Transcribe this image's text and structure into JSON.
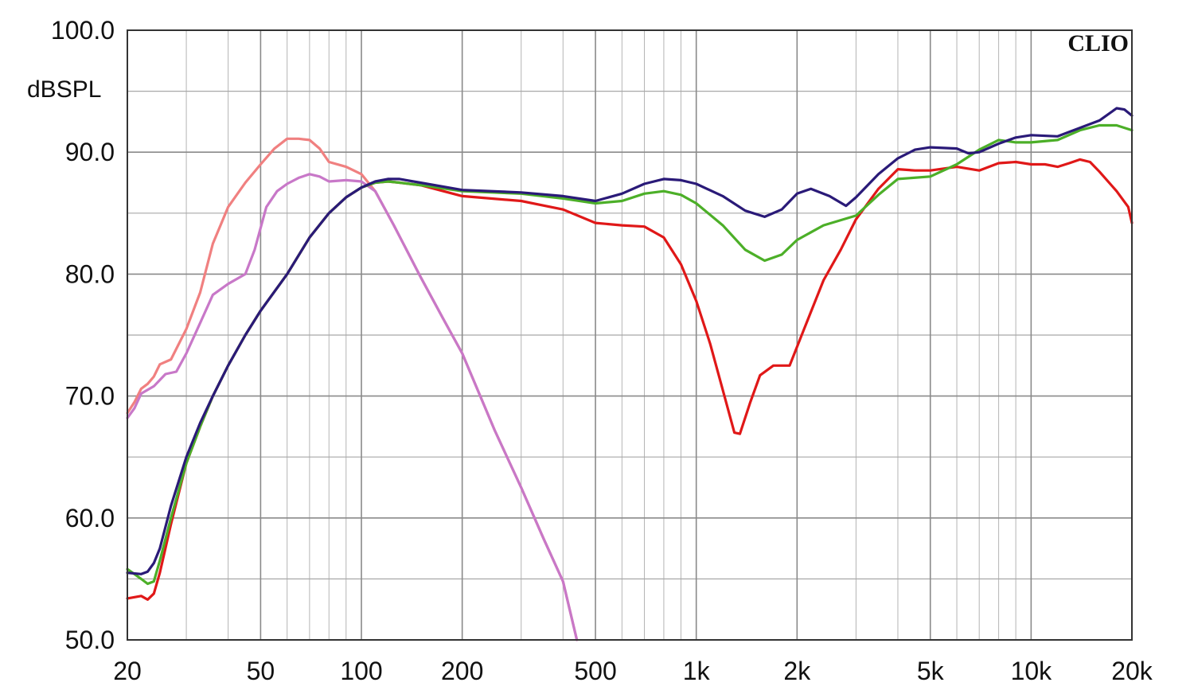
{
  "chart_data": {
    "type": "line",
    "title": "",
    "brand": "CLIO",
    "xlabel": "",
    "ylabel": "dBSPL",
    "x_scale": "log",
    "xlim": [
      20,
      20000
    ],
    "ylim": [
      50,
      100
    ],
    "grid": true,
    "legend": "none",
    "x_ticks": [
      {
        "value": 20,
        "label": "20"
      },
      {
        "value": 50,
        "label": "50"
      },
      {
        "value": 100,
        "label": "100"
      },
      {
        "value": 200,
        "label": "200"
      },
      {
        "value": 500,
        "label": "500"
      },
      {
        "value": 1000,
        "label": "1k"
      },
      {
        "value": 2000,
        "label": "2k"
      },
      {
        "value": 5000,
        "label": "5k"
      },
      {
        "value": 10000,
        "label": "10k"
      },
      {
        "value": 20000,
        "label": "20k"
      }
    ],
    "y_ticks": [
      {
        "value": 100,
        "label": "100.0"
      },
      {
        "value": 90,
        "label": "90.0"
      },
      {
        "value": 80,
        "label": "80.0"
      },
      {
        "value": 70,
        "label": "70.0"
      },
      {
        "value": 60,
        "label": "60.0"
      },
      {
        "value": 50,
        "label": "50.0"
      }
    ],
    "series": [
      {
        "color": "#f08080",
        "points": [
          [
            20,
            68.6
          ],
          [
            21,
            69.5
          ],
          [
            22,
            70.6
          ],
          [
            23,
            71.0
          ],
          [
            24,
            71.6
          ],
          [
            25,
            72.6
          ],
          [
            27,
            73.0
          ],
          [
            30,
            75.5
          ],
          [
            33,
            78.5
          ],
          [
            36,
            82.5
          ],
          [
            40,
            85.5
          ],
          [
            45,
            87.5
          ],
          [
            50,
            89.0
          ],
          [
            55,
            90.3
          ],
          [
            60,
            91.1
          ],
          [
            65,
            91.1
          ],
          [
            70,
            91.0
          ],
          [
            75,
            90.3
          ],
          [
            80,
            89.2
          ],
          [
            90,
            88.8
          ],
          [
            100,
            88.2
          ],
          [
            110,
            86.8
          ],
          [
            125,
            84.0
          ],
          [
            150,
            79.8
          ],
          [
            175,
            76.4
          ],
          [
            200,
            73.5
          ],
          [
            250,
            67.2
          ],
          [
            300,
            62.5
          ],
          [
            350,
            58.3
          ],
          [
            400,
            54.8
          ],
          [
            440,
            50.0
          ]
        ]
      },
      {
        "color": "#c878c8",
        "points": [
          [
            20,
            68.2
          ],
          [
            21,
            69.0
          ],
          [
            22,
            70.2
          ],
          [
            24,
            70.8
          ],
          [
            26,
            71.8
          ],
          [
            28,
            72.0
          ],
          [
            30,
            73.5
          ],
          [
            33,
            76.0
          ],
          [
            36,
            78.3
          ],
          [
            40,
            79.2
          ],
          [
            45,
            80.0
          ],
          [
            48,
            82.0
          ],
          [
            52,
            85.5
          ],
          [
            56,
            86.8
          ],
          [
            60,
            87.4
          ],
          [
            65,
            87.9
          ],
          [
            70,
            88.2
          ],
          [
            75,
            88.0
          ],
          [
            80,
            87.6
          ],
          [
            90,
            87.7
          ],
          [
            100,
            87.6
          ],
          [
            110,
            86.8
          ],
          [
            125,
            84.0
          ],
          [
            150,
            79.8
          ],
          [
            175,
            76.4
          ],
          [
            200,
            73.5
          ],
          [
            250,
            67.2
          ],
          [
            300,
            62.5
          ],
          [
            350,
            58.3
          ],
          [
            400,
            54.8
          ],
          [
            440,
            50.0
          ]
        ]
      },
      {
        "color": "#e01818",
        "points": [
          [
            20,
            53.4
          ],
          [
            22,
            53.6
          ],
          [
            23,
            53.3
          ],
          [
            24,
            53.8
          ],
          [
            25,
            55.5
          ],
          [
            27,
            59.5
          ],
          [
            30,
            64.5
          ],
          [
            33,
            67.5
          ],
          [
            36,
            70.0
          ],
          [
            40,
            72.5
          ],
          [
            45,
            75.0
          ],
          [
            50,
            77.0
          ],
          [
            60,
            80.0
          ],
          [
            70,
            83.0
          ],
          [
            80,
            85.0
          ],
          [
            90,
            86.3
          ],
          [
            100,
            87.1
          ],
          [
            110,
            87.5
          ],
          [
            120,
            87.6
          ],
          [
            130,
            87.5
          ],
          [
            150,
            87.3
          ],
          [
            200,
            86.4
          ],
          [
            300,
            86.0
          ],
          [
            400,
            85.3
          ],
          [
            500,
            84.2
          ],
          [
            600,
            84.0
          ],
          [
            700,
            83.9
          ],
          [
            800,
            83.0
          ],
          [
            900,
            80.8
          ],
          [
            1000,
            77.8
          ],
          [
            1100,
            74.3
          ],
          [
            1200,
            70.5
          ],
          [
            1300,
            67.0
          ],
          [
            1350,
            66.9
          ],
          [
            1450,
            69.5
          ],
          [
            1550,
            71.7
          ],
          [
            1700,
            72.5
          ],
          [
            1900,
            72.5
          ],
          [
            2100,
            75.5
          ],
          [
            2400,
            79.5
          ],
          [
            2700,
            82.0
          ],
          [
            3000,
            84.5
          ],
          [
            3500,
            87.0
          ],
          [
            4000,
            88.6
          ],
          [
            4500,
            88.5
          ],
          [
            5000,
            88.5
          ],
          [
            6000,
            88.8
          ],
          [
            7000,
            88.5
          ],
          [
            8000,
            89.1
          ],
          [
            9000,
            89.2
          ],
          [
            10000,
            89.0
          ],
          [
            11000,
            89.0
          ],
          [
            12000,
            88.8
          ],
          [
            13000,
            89.1
          ],
          [
            14000,
            89.4
          ],
          [
            15000,
            89.2
          ],
          [
            16000,
            88.4
          ],
          [
            18000,
            86.8
          ],
          [
            19500,
            85.5
          ],
          [
            20000,
            84.2
          ]
        ]
      },
      {
        "color": "#4caf28",
        "points": [
          [
            20,
            55.8
          ],
          [
            21,
            55.4
          ],
          [
            22,
            55.0
          ],
          [
            23,
            54.6
          ],
          [
            24,
            54.8
          ],
          [
            25,
            56.5
          ],
          [
            27,
            60.0
          ],
          [
            30,
            64.5
          ],
          [
            33,
            67.5
          ],
          [
            36,
            70.0
          ],
          [
            40,
            72.5
          ],
          [
            45,
            75.0
          ],
          [
            50,
            77.0
          ],
          [
            60,
            80.0
          ],
          [
            70,
            83.0
          ],
          [
            80,
            85.0
          ],
          [
            90,
            86.3
          ],
          [
            100,
            87.1
          ],
          [
            110,
            87.5
          ],
          [
            120,
            87.6
          ],
          [
            130,
            87.5
          ],
          [
            150,
            87.3
          ],
          [
            200,
            86.8
          ],
          [
            300,
            86.6
          ],
          [
            400,
            86.2
          ],
          [
            500,
            85.8
          ],
          [
            600,
            86.0
          ],
          [
            700,
            86.6
          ],
          [
            800,
            86.8
          ],
          [
            900,
            86.5
          ],
          [
            1000,
            85.8
          ],
          [
            1200,
            84.0
          ],
          [
            1400,
            82.0
          ],
          [
            1600,
            81.1
          ],
          [
            1800,
            81.6
          ],
          [
            2000,
            82.8
          ],
          [
            2400,
            84.0
          ],
          [
            3000,
            84.8
          ],
          [
            3500,
            86.5
          ],
          [
            4000,
            87.8
          ],
          [
            5000,
            88.0
          ],
          [
            6000,
            89.0
          ],
          [
            7000,
            90.2
          ],
          [
            8000,
            91.0
          ],
          [
            9000,
            90.8
          ],
          [
            10000,
            90.8
          ],
          [
            12000,
            91.0
          ],
          [
            14000,
            91.8
          ],
          [
            16000,
            92.2
          ],
          [
            18000,
            92.2
          ],
          [
            20000,
            91.8
          ]
        ]
      },
      {
        "color": "#2a1a78",
        "points": [
          [
            20,
            55.5
          ],
          [
            22,
            55.4
          ],
          [
            23,
            55.6
          ],
          [
            24,
            56.3
          ],
          [
            25,
            57.5
          ],
          [
            27,
            61.0
          ],
          [
            30,
            65.0
          ],
          [
            33,
            67.8
          ],
          [
            36,
            70.0
          ],
          [
            40,
            72.5
          ],
          [
            45,
            75.0
          ],
          [
            50,
            77.0
          ],
          [
            60,
            80.0
          ],
          [
            70,
            83.0
          ],
          [
            80,
            85.0
          ],
          [
            90,
            86.3
          ],
          [
            100,
            87.1
          ],
          [
            110,
            87.6
          ],
          [
            120,
            87.8
          ],
          [
            130,
            87.8
          ],
          [
            150,
            87.5
          ],
          [
            200,
            86.9
          ],
          [
            300,
            86.7
          ],
          [
            400,
            86.4
          ],
          [
            500,
            86.0
          ],
          [
            600,
            86.6
          ],
          [
            700,
            87.4
          ],
          [
            800,
            87.8
          ],
          [
            900,
            87.7
          ],
          [
            1000,
            87.4
          ],
          [
            1200,
            86.4
          ],
          [
            1400,
            85.2
          ],
          [
            1600,
            84.7
          ],
          [
            1800,
            85.3
          ],
          [
            2000,
            86.6
          ],
          [
            2200,
            87.0
          ],
          [
            2500,
            86.4
          ],
          [
            2800,
            85.6
          ],
          [
            3000,
            86.3
          ],
          [
            3500,
            88.2
          ],
          [
            4000,
            89.5
          ],
          [
            4500,
            90.2
          ],
          [
            5000,
            90.4
          ],
          [
            6000,
            90.3
          ],
          [
            6500,
            89.9
          ],
          [
            7000,
            90.0
          ],
          [
            8000,
            90.7
          ],
          [
            9000,
            91.2
          ],
          [
            10000,
            91.4
          ],
          [
            12000,
            91.3
          ],
          [
            14000,
            92.0
          ],
          [
            16000,
            92.6
          ],
          [
            18000,
            93.6
          ],
          [
            19000,
            93.5
          ],
          [
            20000,
            93.0
          ]
        ]
      }
    ]
  }
}
